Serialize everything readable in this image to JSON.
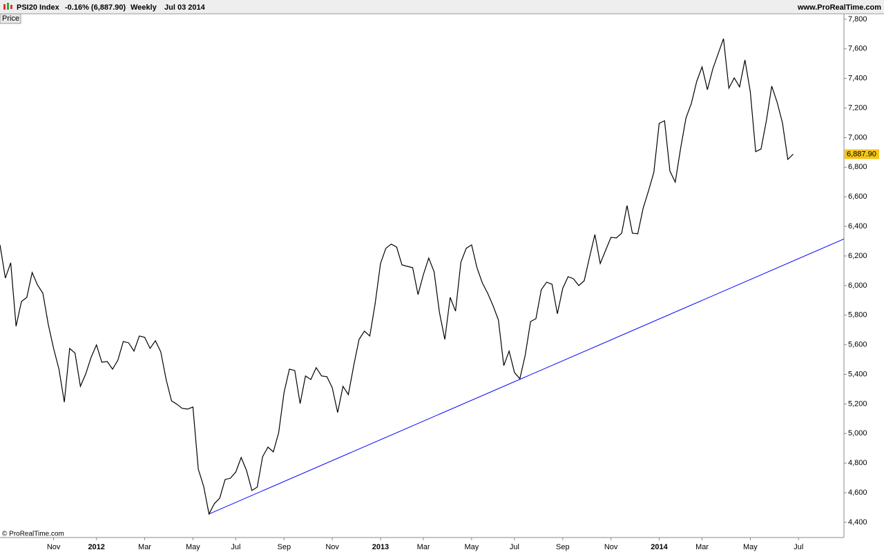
{
  "chart_data": {
    "type": "line",
    "instrument": "PSI20 Index",
    "change": "-0.16% (6,887.90)",
    "period": "Weekly",
    "date": "Jul 03 2014",
    "site": "www.ProRealTime.com",
    "panel_label": "Price",
    "copyright": "© ProRealTime.com",
    "categories": [
      null,
      null,
      null,
      null,
      null,
      null,
      null,
      null,
      null,
      null,
      "Nov",
      null,
      null,
      null,
      null,
      null,
      null,
      null,
      "2012",
      null,
      null,
      null,
      null,
      null,
      null,
      null,
      null,
      "Mar",
      null,
      null,
      null,
      null,
      null,
      null,
      null,
      null,
      "May",
      null,
      null,
      null,
      null,
      null,
      null,
      null,
      "Jul",
      null,
      null,
      null,
      null,
      null,
      null,
      null,
      null,
      "Sep",
      null,
      null,
      null,
      null,
      null,
      null,
      null,
      null,
      "Nov",
      null,
      null,
      null,
      null,
      null,
      null,
      null,
      null,
      "2013",
      null,
      null,
      null,
      null,
      null,
      null,
      null,
      "Mar",
      null,
      null,
      null,
      null,
      null,
      null,
      null,
      null,
      "May",
      null,
      null,
      null,
      null,
      null,
      null,
      null,
      "Jul",
      null,
      null,
      null,
      null,
      null,
      null,
      null,
      null,
      "Sep",
      null,
      null,
      null,
      null,
      null,
      null,
      null,
      null,
      "Nov",
      null,
      null,
      null,
      null,
      null,
      null,
      null,
      null,
      "2014",
      null,
      null,
      null,
      null,
      null,
      null,
      null,
      "Mar",
      null,
      null,
      null,
      null,
      null,
      null,
      null,
      null,
      "May",
      null,
      null,
      null,
      null,
      null,
      null,
      null,
      null,
      "Jul"
    ],
    "series": [
      {
        "color": "#000000",
        "values": [
          6275,
          6051,
          6154,
          5725,
          5892,
          5920,
          6088,
          6004,
          5948,
          5739,
          5575,
          5435,
          5212,
          5575,
          5543,
          5319,
          5403,
          5515,
          5599,
          5482,
          5487,
          5435,
          5496,
          5622,
          5613,
          5557,
          5659,
          5650,
          5575,
          5627,
          5552,
          5365,
          5221,
          5198,
          5170,
          5165,
          5179,
          4759,
          4643,
          4456,
          4526,
          4563,
          4689,
          4698,
          4740,
          4838,
          4750,
          4615,
          4638,
          4843,
          4908,
          4876,
          5006,
          5277,
          5435,
          5426,
          5202,
          5389,
          5365,
          5445,
          5389,
          5384,
          5309,
          5142,
          5319,
          5263,
          5459,
          5636,
          5692,
          5659,
          5878,
          6149,
          6252,
          6280,
          6261,
          6140,
          6130,
          6121,
          5939,
          6074,
          6186,
          6093,
          5818,
          5636,
          5920,
          5827,
          6158,
          6252,
          6275,
          6121,
          6018,
          5948,
          5864,
          5767,
          5459,
          5557,
          5412,
          5370,
          5529,
          5757,
          5776,
          5972,
          6023,
          6009,
          5809,
          5981,
          6060,
          6046,
          6000,
          6032,
          6191,
          6345,
          6149,
          6238,
          6326,
          6322,
          6354,
          6541,
          6354,
          6350,
          6522,
          6639,
          6765,
          7096,
          7114,
          6774,
          6699,
          6928,
          7133,
          7231,
          7380,
          7478,
          7324,
          7464,
          7567,
          7669,
          7334,
          7404,
          7343,
          7525,
          7310,
          6905,
          6923,
          7114,
          7348,
          7240,
          7100,
          6853,
          6887.9,
          null
        ],
        "value_labels": [
          null,
          null,
          null,
          null,
          null,
          null,
          null,
          null,
          null,
          null,
          null,
          null,
          null,
          null,
          null,
          null,
          null,
          null,
          null,
          null,
          null,
          null,
          null,
          null,
          null,
          null,
          null,
          null,
          null,
          null,
          null,
          null,
          null,
          null,
          null,
          null,
          null,
          null,
          null,
          null,
          null,
          null,
          null,
          null,
          null,
          null,
          null,
          null,
          null,
          null,
          null,
          null,
          null,
          null,
          null,
          null,
          null,
          null,
          null,
          null,
          null,
          null,
          null,
          null,
          null,
          null,
          null,
          null,
          null,
          null,
          null,
          null,
          null,
          null,
          null,
          null,
          null,
          null,
          null,
          null,
          null,
          null,
          null,
          null,
          null,
          null,
          null,
          null,
          null,
          null,
          null,
          null,
          null,
          null,
          null,
          null,
          null,
          null,
          null,
          null,
          null,
          null,
          null,
          null,
          null,
          null,
          null,
          null,
          null,
          null,
          null,
          null,
          null,
          null,
          null,
          null,
          null,
          null,
          null,
          null,
          null,
          null,
          null,
          null,
          null,
          null,
          null,
          null,
          null,
          null,
          null,
          null,
          null,
          null,
          null,
          null,
          null,
          null,
          null,
          null,
          null,
          null,
          null,
          null,
          null,
          null,
          null,
          null,
          "6,887.90",
          null
        ],
        "value_label_color": "#f5c518"
      }
    ],
    "trend_line": {
      "color": "#0000ff",
      "from": {
        "index": 39,
        "value": 4456
      },
      "to": {
        "index": 149,
        "value": 6182
      }
    },
    "ylim": [
      4297,
      7837
    ],
    "yticks": [
      {
        "value": 4400,
        "label": "4,400"
      },
      {
        "value": 4600,
        "label": "4,600"
      },
      {
        "value": 4800,
        "label": "4,800"
      },
      {
        "value": 5000,
        "label": "5,000"
      },
      {
        "value": 5200,
        "label": "5,200"
      },
      {
        "value": 5400,
        "label": "5,400"
      },
      {
        "value": 5600,
        "label": "5,600"
      },
      {
        "value": 5800,
        "label": "5,800"
      },
      {
        "value": 6000,
        "label": "6,000"
      },
      {
        "value": 6200,
        "label": "6,200"
      },
      {
        "value": 6400,
        "label": "6,400"
      },
      {
        "value": 6600,
        "label": "6,600"
      },
      {
        "value": 6800,
        "label": "6,800"
      },
      {
        "value": 7000,
        "label": "7,000"
      },
      {
        "value": 7200,
        "label": "7,200"
      },
      {
        "value": 7400,
        "label": "7,400"
      },
      {
        "value": 7600,
        "label": "7,600"
      },
      {
        "value": 7800,
        "label": "7,800"
      }
    ],
    "grid": false
  }
}
